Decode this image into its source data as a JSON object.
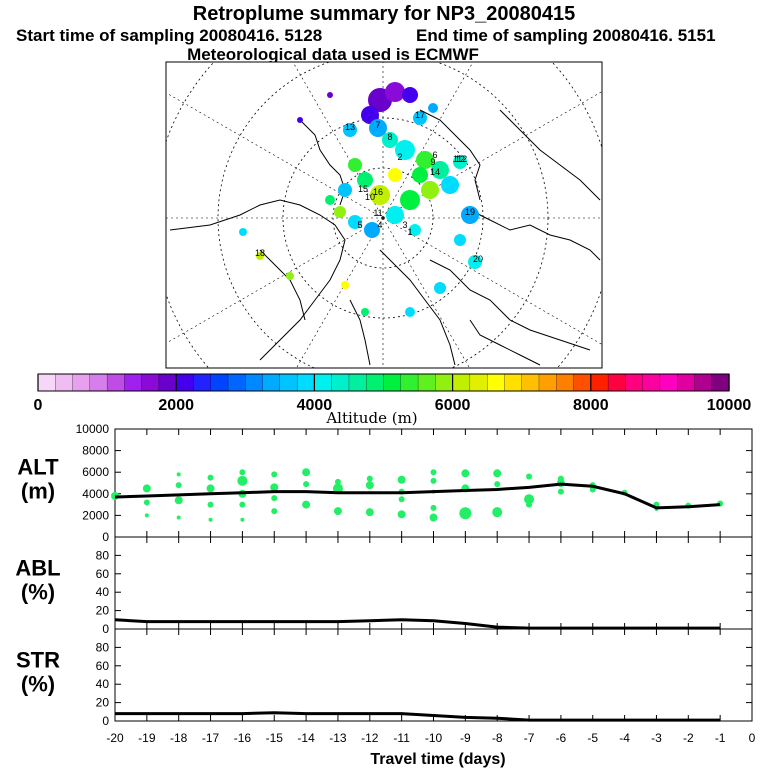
{
  "title": "Retroplume summary for NP3_20080415",
  "subtitle_start": "Start time of sampling 20080416.  5128",
  "subtitle_end": "End time of sampling 20080416.  5151",
  "met_line": "Meteorological data used is ECMWF",
  "map_labels": [
    "19",
    "18",
    "17",
    "16",
    "15",
    "14",
    "13",
    "12",
    "11",
    "10",
    "9",
    "8",
    "7",
    "6",
    "5",
    "4",
    "3",
    "2",
    "1",
    "20",
    "112"
  ],
  "colorbar": {
    "label": "Altitude (m)",
    "ticks": [
      "0",
      "2000",
      "4000",
      "6000",
      "8000",
      "10000"
    ],
    "colors": [
      "#f7d7f7",
      "#f0bdf2",
      "#e6a0ee",
      "#d67fea",
      "#c04ce6",
      "#a020f0",
      "#8a0ad8",
      "#6a00cc",
      "#4400ee",
      "#2222ff",
      "#0044ff",
      "#0066ff",
      "#0088ff",
      "#00aaff",
      "#00c4ff",
      "#00dcff",
      "#00f0f0",
      "#00f0cc",
      "#00f0a0",
      "#00f070",
      "#00f040",
      "#30f030",
      "#60f020",
      "#90f010",
      "#c0f000",
      "#e0f000",
      "#ffff00",
      "#ffe000",
      "#ffc000",
      "#ffa000",
      "#ff8000",
      "#ff5000",
      "#ff2000",
      "#ff0040",
      "#ff0080",
      "#ff00a0",
      "#ff00c0",
      "#e000a0",
      "#b00090",
      "#800080"
    ]
  },
  "chart_data": [
    {
      "type": "line",
      "panel": "ALT",
      "ylabel_top": "ALT",
      "ylabel_bottom": "(m)",
      "ylim": [
        0,
        10000
      ],
      "yticks": [
        "10000",
        "8000",
        "6000",
        "4000",
        "2000",
        "0"
      ],
      "x": [
        -20,
        -19,
        -18,
        -17,
        -16,
        -15,
        -14,
        -13,
        -12,
        -11,
        -10,
        -9,
        -8,
        -7,
        -6,
        -5,
        -4,
        -3,
        -2,
        -1
      ],
      "line_values": [
        3700,
        3800,
        3900,
        4000,
        4100,
        4200,
        4200,
        4100,
        4100,
        4100,
        4200,
        4300,
        4400,
        4600,
        4900,
        4700,
        4000,
        2700,
        2800,
        3000
      ],
      "scatter": [
        [
          -20,
          3800,
          4
        ],
        [
          -19,
          4500,
          4
        ],
        [
          -19,
          3200,
          3
        ],
        [
          -19,
          2000,
          2
        ],
        [
          -18,
          5800,
          2
        ],
        [
          -18,
          4800,
          3
        ],
        [
          -18,
          3400,
          4
        ],
        [
          -18,
          1800,
          2
        ],
        [
          -17,
          5500,
          3
        ],
        [
          -17,
          4500,
          4
        ],
        [
          -17,
          3000,
          3
        ],
        [
          -17,
          1600,
          2
        ],
        [
          -16,
          6000,
          3
        ],
        [
          -16,
          5200,
          5
        ],
        [
          -16,
          4000,
          4
        ],
        [
          -16,
          3000,
          3
        ],
        [
          -16,
          1600,
          2
        ],
        [
          -15,
          5800,
          3
        ],
        [
          -15,
          4600,
          4
        ],
        [
          -15,
          3600,
          3
        ],
        [
          -15,
          2400,
          3
        ],
        [
          -14,
          6000,
          4
        ],
        [
          -14,
          4900,
          3
        ],
        [
          -14,
          3000,
          4
        ],
        [
          -13,
          5100,
          3
        ],
        [
          -13,
          4500,
          5
        ],
        [
          -13,
          2400,
          4
        ],
        [
          -12,
          5400,
          3
        ],
        [
          -12,
          4800,
          4
        ],
        [
          -12,
          2300,
          4
        ],
        [
          -11,
          5300,
          4
        ],
        [
          -11,
          4200,
          3
        ],
        [
          -11,
          3500,
          3
        ],
        [
          -11,
          2100,
          4
        ],
        [
          -10,
          6000,
          3
        ],
        [
          -10,
          5200,
          3
        ],
        [
          -10,
          4200,
          2
        ],
        [
          -10,
          2700,
          3
        ],
        [
          -10,
          1800,
          4
        ],
        [
          -9,
          5900,
          4
        ],
        [
          -9,
          4500,
          4
        ],
        [
          -9,
          2200,
          6
        ],
        [
          -8,
          5900,
          4
        ],
        [
          -8,
          4900,
          3
        ],
        [
          -8,
          2300,
          5
        ],
        [
          -7,
          5600,
          3
        ],
        [
          -7,
          3500,
          5
        ],
        [
          -7,
          3000,
          3
        ],
        [
          -6,
          5400,
          3
        ],
        [
          -6,
          5000,
          4
        ],
        [
          -6,
          4200,
          3
        ],
        [
          -5,
          4800,
          3
        ],
        [
          -5,
          4400,
          3
        ],
        [
          -4,
          4100,
          3
        ],
        [
          -3,
          3000,
          3
        ],
        [
          -3,
          2600,
          2
        ],
        [
          -2,
          2900,
          3
        ],
        [
          -1,
          3100,
          3
        ]
      ]
    },
    {
      "type": "line",
      "panel": "ABL",
      "ylabel_top": "ABL",
      "ylabel_bottom": "(%)",
      "ylim": [
        0,
        100
      ],
      "yticks": [
        "80",
        "60",
        "40",
        "20",
        "0"
      ],
      "x": [
        -20,
        -19,
        -18,
        -17,
        -16,
        -15,
        -14,
        -13,
        -12,
        -11,
        -10,
        -9,
        -8,
        -7,
        -6,
        -5,
        -4,
        -3,
        -2,
        -1
      ],
      "values": [
        10,
        8,
        8,
        8,
        8,
        8,
        8,
        8,
        9,
        10,
        9,
        6,
        2,
        1,
        1,
        1,
        1,
        1,
        1,
        1
      ]
    },
    {
      "type": "line",
      "panel": "STR",
      "ylabel_top": "STR",
      "ylabel_bottom": "(%)",
      "ylim": [
        0,
        100
      ],
      "yticks": [
        "80",
        "60",
        "40",
        "20",
        "0"
      ],
      "x": [
        -20,
        -19,
        -18,
        -17,
        -16,
        -15,
        -14,
        -13,
        -12,
        -11,
        -10,
        -9,
        -8,
        -7,
        -6,
        -5,
        -4,
        -3,
        -2,
        -1
      ],
      "values": [
        8,
        8,
        8,
        8,
        8,
        9,
        8,
        8,
        8,
        8,
        6,
        4,
        3,
        1,
        1,
        1,
        1,
        1,
        1,
        1
      ]
    }
  ],
  "xaxis": {
    "label": "Travel time (days)",
    "ticks": [
      "-20",
      "-19",
      "-18",
      "-17",
      "-16",
      "-15",
      "-14",
      "-13",
      "-12",
      "-11",
      "-10",
      "-9",
      "-8",
      "-7",
      "-6",
      "-5",
      "-4",
      "-3",
      "-2",
      "-1",
      "0"
    ],
    "xlim": [
      -20,
      0
    ]
  }
}
